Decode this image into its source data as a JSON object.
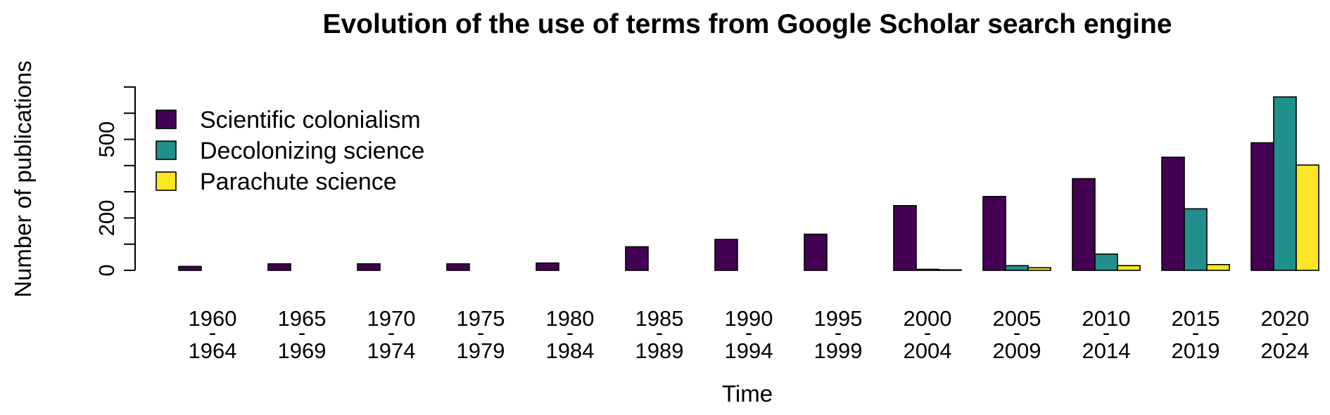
{
  "chart_data": {
    "type": "bar",
    "title": "Evolution of the use of terms from Google Scholar search engine",
    "xlabel": "Time",
    "ylabel": "Number of publications",
    "categories": [
      [
        "1960",
        "-",
        "1964"
      ],
      [
        "1965",
        "-",
        "1969"
      ],
      [
        "1970",
        "-",
        "1974"
      ],
      [
        "1975",
        "-",
        "1979"
      ],
      [
        "1980",
        "-",
        "1984"
      ],
      [
        "1985",
        "-",
        "1989"
      ],
      [
        "1990",
        "-",
        "1994"
      ],
      [
        "1995",
        "-",
        "1999"
      ],
      [
        "2000",
        "-",
        "2004"
      ],
      [
        "2005",
        "-",
        "2009"
      ],
      [
        "2010",
        "-",
        "2014"
      ],
      [
        "2015",
        "-",
        "2019"
      ],
      [
        "2020",
        "-",
        "2024"
      ]
    ],
    "series": [
      {
        "name": "Scientific colonialism",
        "color": "#440154",
        "values": [
          15,
          25,
          25,
          25,
          28,
          90,
          118,
          138,
          247,
          282,
          350,
          432,
          487
        ]
      },
      {
        "name": "Decolonizing science",
        "color": "#21908C",
        "values": [
          0,
          0,
          0,
          0,
          0,
          0,
          0,
          0,
          4,
          18,
          62,
          235,
          662
        ]
      },
      {
        "name": "Parachute science",
        "color": "#FDE725",
        "values": [
          0,
          0,
          0,
          0,
          0,
          0,
          0,
          0,
          2,
          10,
          18,
          22,
          402
        ]
      }
    ],
    "yticks": [
      0,
      200,
      500
    ],
    "ylim": [
      0,
      700
    ],
    "legend_position": "top-left",
    "grid": false
  }
}
